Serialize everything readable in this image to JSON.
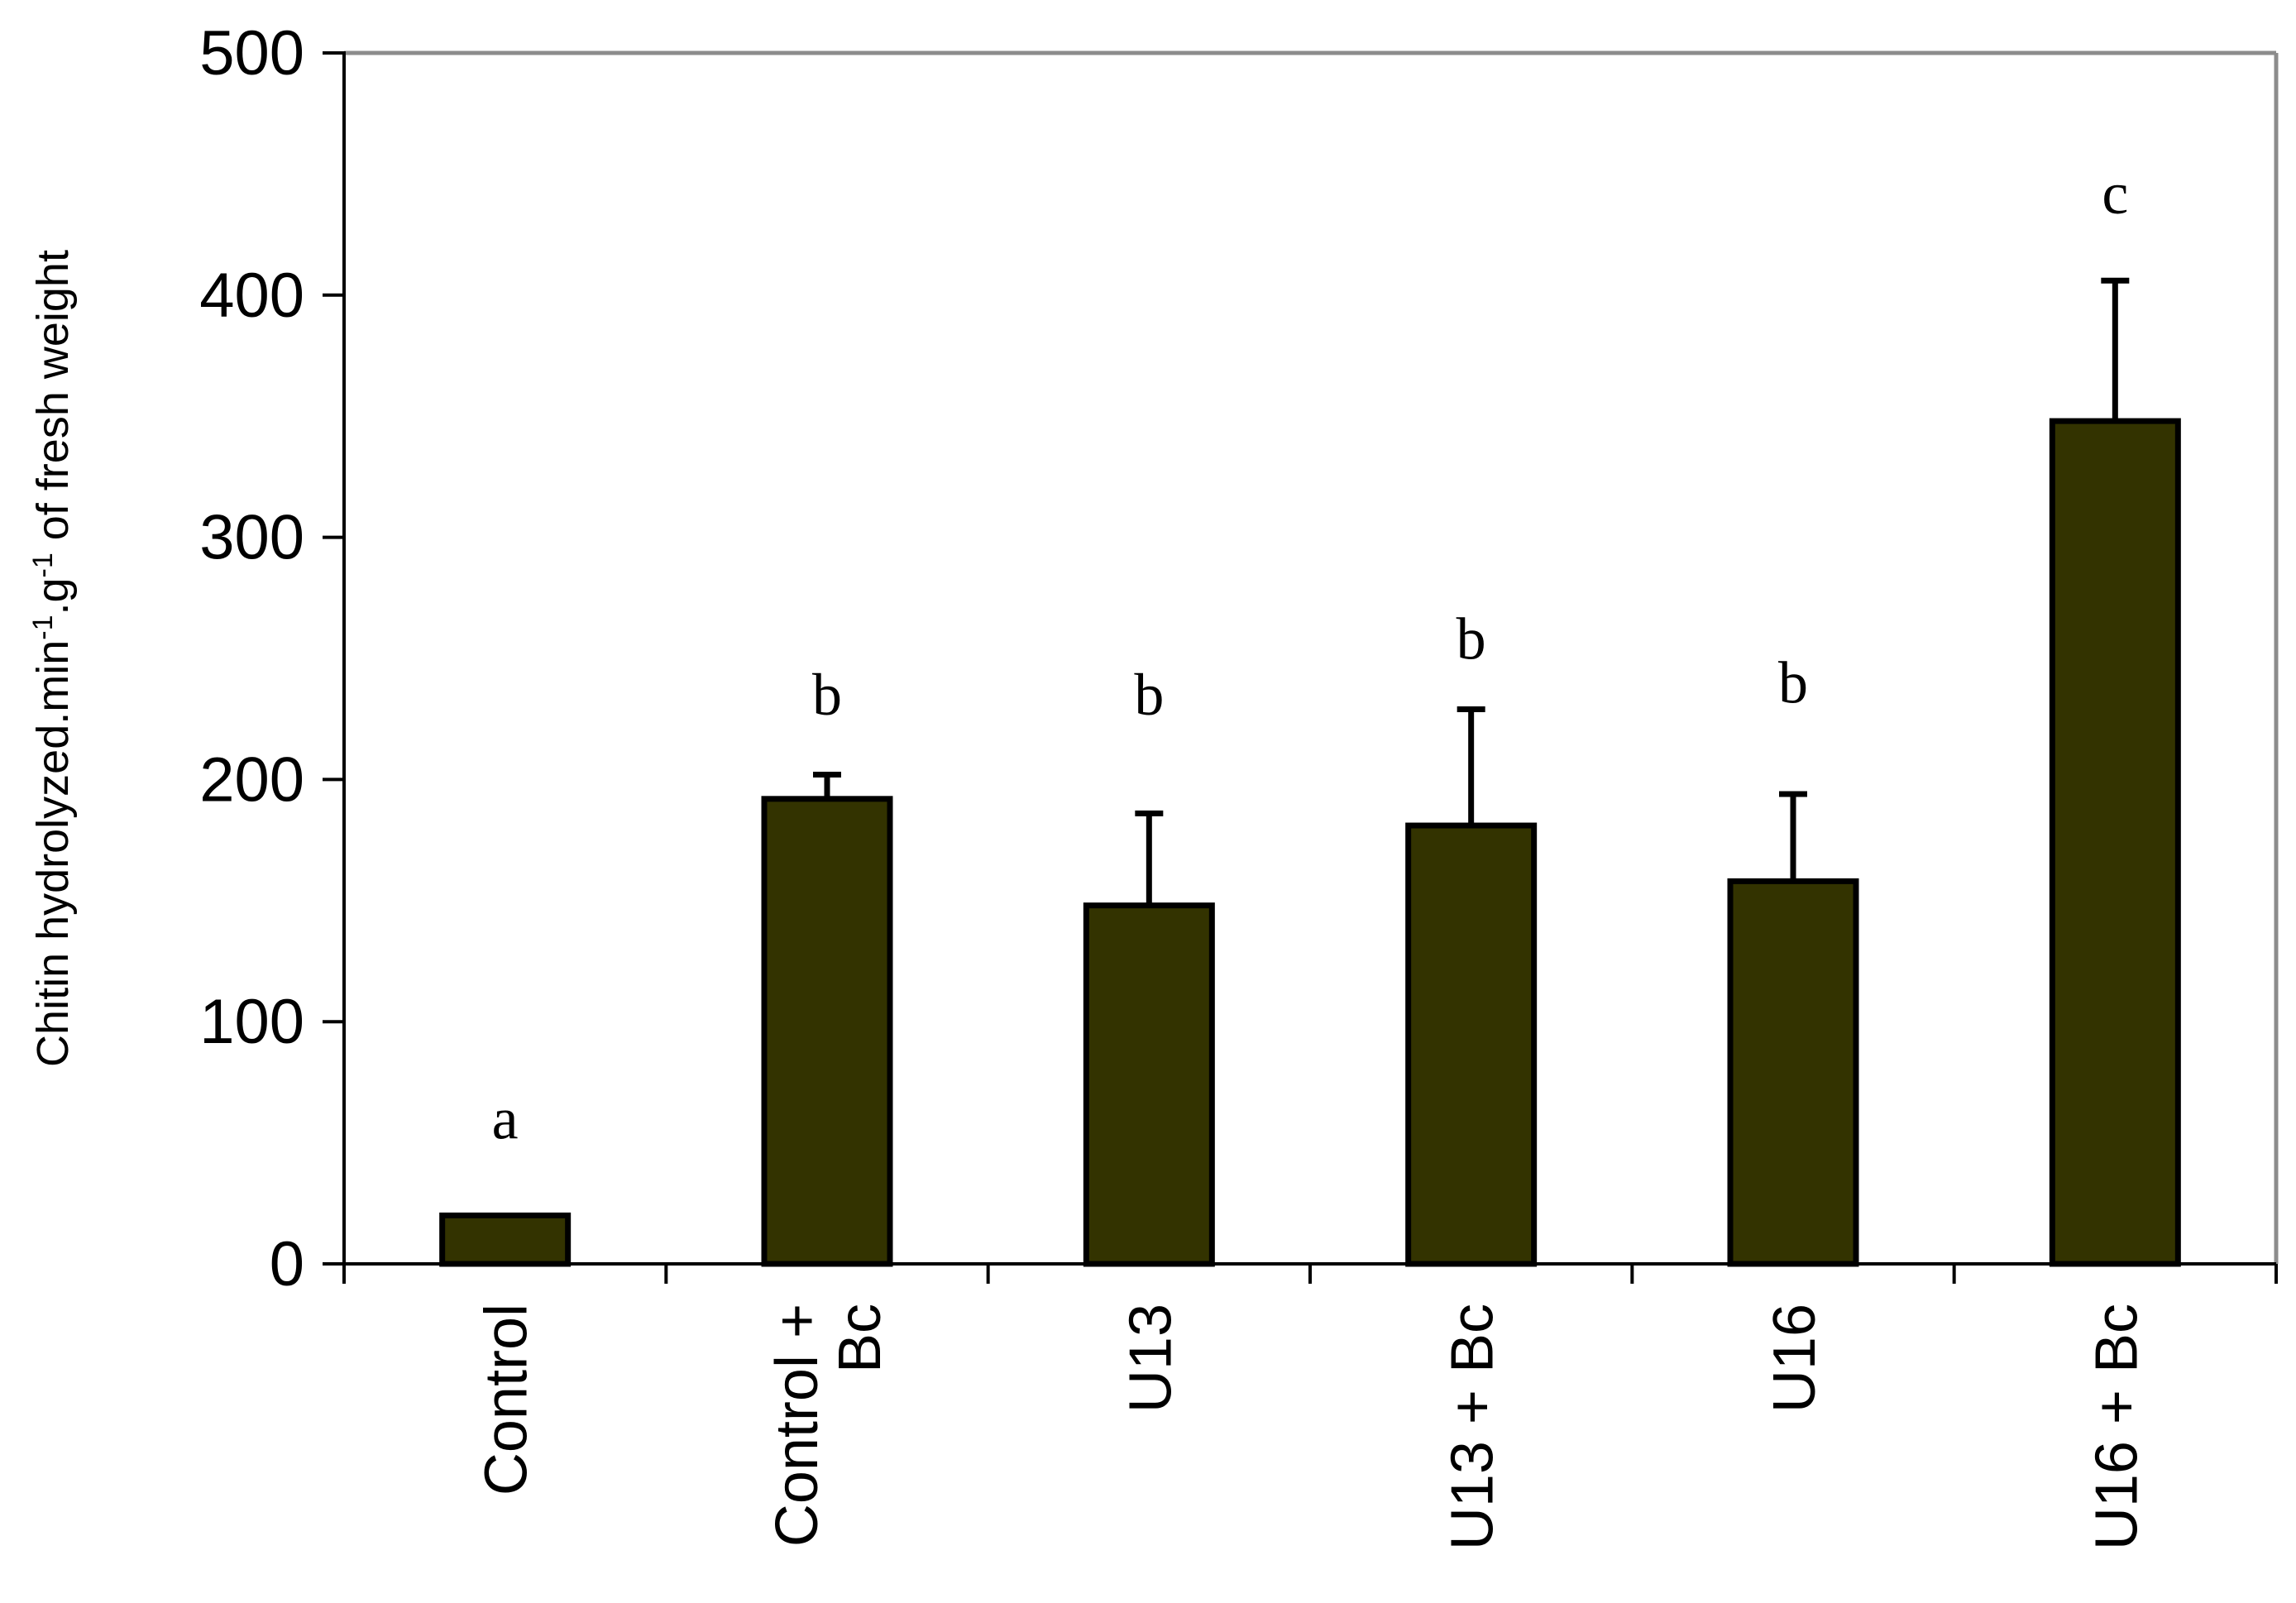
{
  "chart_data": {
    "type": "bar",
    "title": "",
    "xlabel": "",
    "ylabel": {
      "parts": [
        {
          "text": "Chitin hydrolyzed.min",
          "sup": false
        },
        {
          "text": "-1",
          "sup": true
        },
        {
          "text": ".g",
          "sup": false
        },
        {
          "text": "-1",
          "sup": true
        },
        {
          "text": " of fresh weight",
          "sup": false
        }
      ]
    },
    "ylim": [
      0,
      500
    ],
    "yticks": [
      0,
      100,
      200,
      300,
      400,
      500
    ],
    "grid": false,
    "legend": "none",
    "categories": [
      [
        "Control"
      ],
      [
        "Control +",
        "Bc"
      ],
      [
        "U13"
      ],
      [
        "U13 + Bc"
      ],
      [
        "U16"
      ],
      [
        "U16 + Bc"
      ]
    ],
    "series": [
      {
        "values": [
          20,
          192,
          148,
          181,
          158,
          348
        ],
        "error_upper": [
          0,
          10,
          38,
          48,
          36,
          58
        ],
        "color": "#333300"
      }
    ],
    "significance_letters": [
      "a",
      "b",
      "b",
      "b",
      "b",
      "c"
    ],
    "significance_y": [
      60,
      235,
      235,
      258,
      240,
      442
    ]
  }
}
